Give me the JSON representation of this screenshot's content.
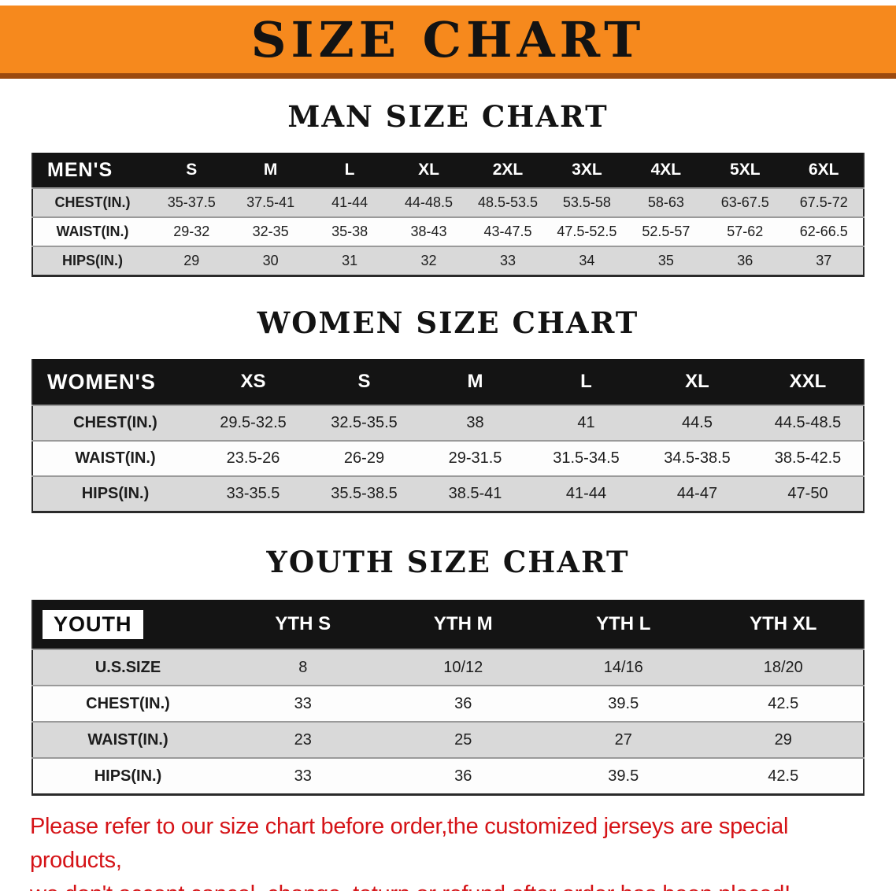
{
  "banner": {
    "title": "SIZE CHART",
    "bg_color": "#F6891D",
    "border_color": "#9C4A0E"
  },
  "sections": {
    "men": {
      "heading": "MAN SIZE CHART",
      "header": [
        "MEN'S",
        "S",
        "M",
        "L",
        "XL",
        "2XL",
        "3XL",
        "4XL",
        "5XL",
        "6XL"
      ],
      "rows": [
        [
          "CHEST(IN.)",
          "35-37.5",
          "37.5-41",
          "41-44",
          "44-48.5",
          "48.5-53.5",
          "53.5-58",
          "58-63",
          "63-67.5",
          "67.5-72"
        ],
        [
          "WAIST(IN.)",
          "29-32",
          "32-35",
          "35-38",
          "38-43",
          "43-47.5",
          "47.5-52.5",
          "52.5-57",
          "57-62",
          "62-66.5"
        ],
        [
          "HIPS(IN.)",
          "29",
          "30",
          "31",
          "32",
          "33",
          "34",
          "35",
          "36",
          "37"
        ]
      ]
    },
    "women": {
      "heading": "WOMEN SIZE CHART",
      "header": [
        "WOMEN'S",
        "XS",
        "S",
        "M",
        "L",
        "XL",
        "XXL"
      ],
      "rows": [
        [
          "CHEST(IN.)",
          "29.5-32.5",
          "32.5-35.5",
          "38",
          "41",
          "44.5",
          "44.5-48.5"
        ],
        [
          "WAIST(IN.)",
          "23.5-26",
          "26-29",
          "29-31.5",
          "31.5-34.5",
          "34.5-38.5",
          "38.5-42.5"
        ],
        [
          "HIPS(IN.)",
          "33-35.5",
          "35.5-38.5",
          "38.5-41",
          "41-44",
          "44-47",
          "47-50"
        ]
      ]
    },
    "youth": {
      "heading": "YOUTH SIZE CHART",
      "header": [
        "YOUTH",
        "YTH S",
        "YTH M",
        "YTH L",
        "YTH XL"
      ],
      "rows": [
        [
          "U.S.SIZE",
          "8",
          "10/12",
          "14/16",
          "18/20"
        ],
        [
          "CHEST(IN.)",
          "33",
          "36",
          "39.5",
          "42.5"
        ],
        [
          "WAIST(IN.)",
          "23",
          "25",
          "27",
          "29"
        ],
        [
          "HIPS(IN.)",
          "33",
          "36",
          "39.5",
          "42.5"
        ]
      ]
    }
  },
  "disclaimer": {
    "line1": "Please refer to our size chart before order,the customized jerseys are special products,",
    "line2": "we don't accept cancel, change, teturn or refund after order has been placed!",
    "color": "#D51317"
  }
}
